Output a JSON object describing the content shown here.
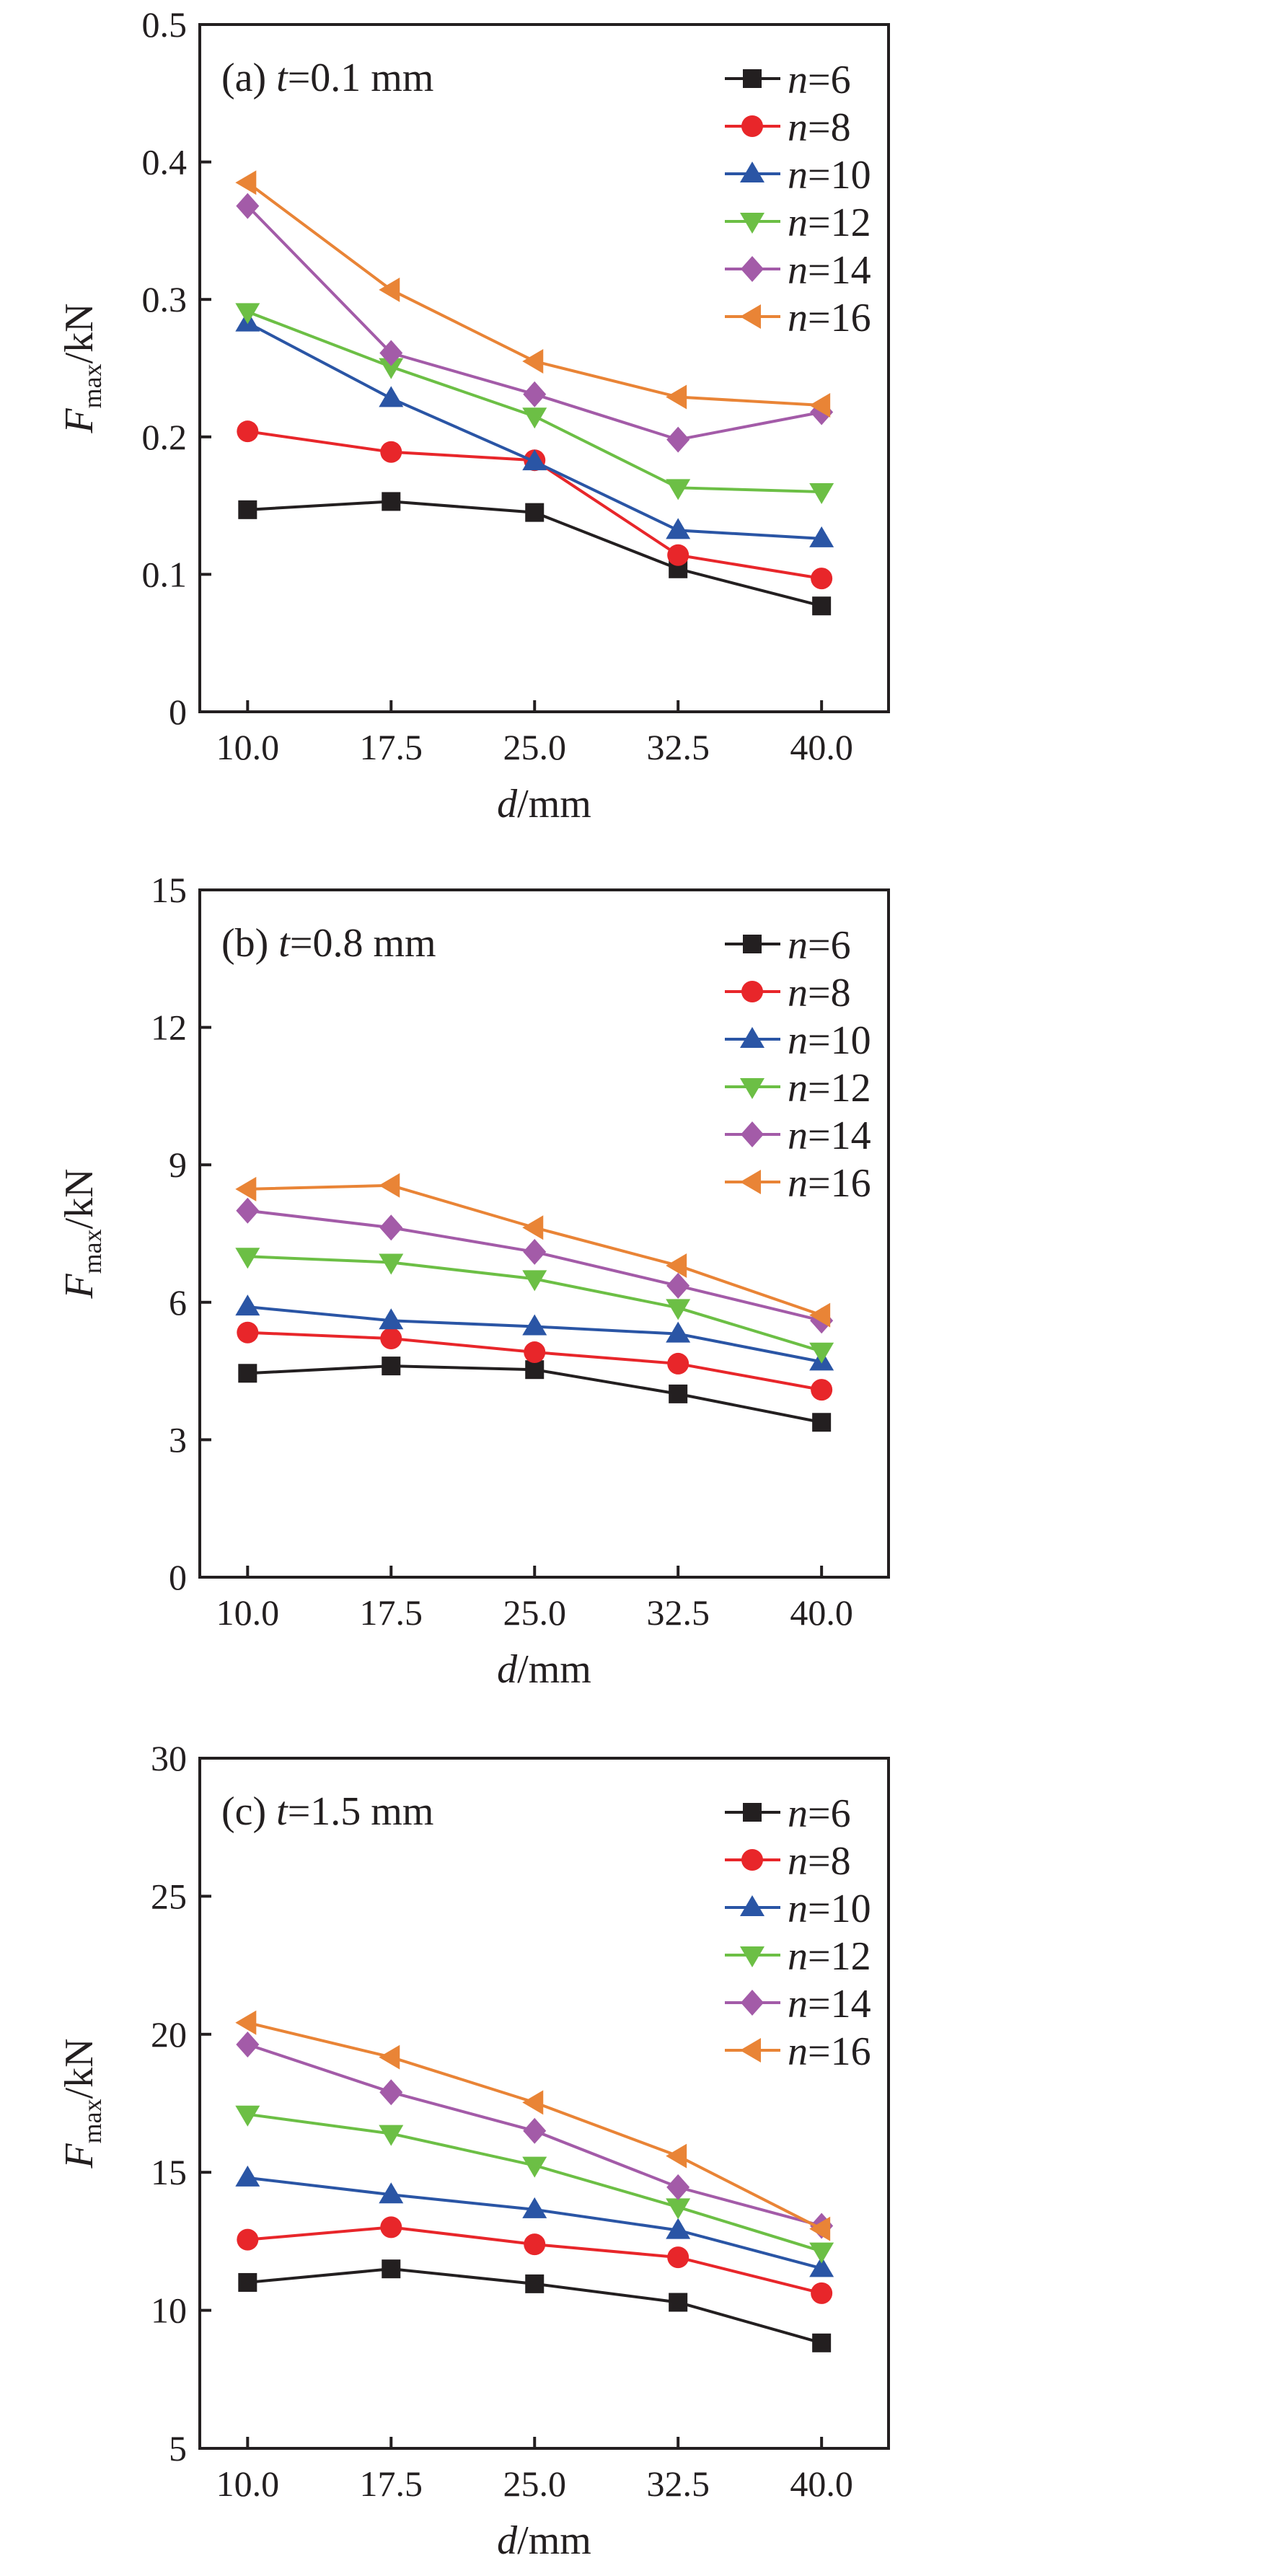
{
  "chart_data": [
    {
      "type": "line",
      "panel_label": "(a) ",
      "panel_t": "t",
      "panel_rest": "=0.1 mm",
      "xlabel_italic": "d",
      "xlabel_rest": "/mm",
      "ylabel_main": "F",
      "ylabel_sub": "max",
      "ylabel_rest": "/kN",
      "x": [
        10.0,
        17.5,
        25.0,
        32.5,
        40.0
      ],
      "xticks": [
        "10.0",
        "17.5",
        "25.0",
        "32.5",
        "40.0"
      ],
      "ylim": [
        0,
        0.5
      ],
      "yticks": [
        "0",
        "0.1",
        "0.2",
        "0.3",
        "0.4",
        "0.5"
      ],
      "legend_position": "top-right",
      "series": [
        {
          "name": "n=6",
          "values": [
            0.147,
            0.153,
            0.145,
            0.104,
            0.077
          ]
        },
        {
          "name": "n=8",
          "values": [
            0.204,
            0.189,
            0.183,
            0.114,
            0.097
          ]
        },
        {
          "name": "n=10",
          "values": [
            0.283,
            0.228,
            0.182,
            0.132,
            0.126
          ]
        },
        {
          "name": "n=12",
          "values": [
            0.291,
            0.251,
            0.215,
            0.163,
            0.16
          ]
        },
        {
          "name": "n=14",
          "values": [
            0.368,
            0.261,
            0.231,
            0.198,
            0.218
          ]
        },
        {
          "name": "n=16",
          "values": [
            0.385,
            0.307,
            0.255,
            0.229,
            0.223
          ]
        }
      ]
    },
    {
      "type": "line",
      "panel_label": "(b) ",
      "panel_t": "t",
      "panel_rest": "=0.8 mm",
      "xlabel_italic": "d",
      "xlabel_rest": "/mm",
      "ylabel_main": "F",
      "ylabel_sub": "max",
      "ylabel_rest": "/kN",
      "x": [
        10.0,
        17.5,
        25.0,
        32.5,
        40.0
      ],
      "xticks": [
        "10.0",
        "17.5",
        "25.0",
        "32.5",
        "40.0"
      ],
      "ylim": [
        0,
        15
      ],
      "yticks": [
        "0",
        "3",
        "6",
        "9",
        "12",
        "15"
      ],
      "legend_position": "top-right",
      "series": [
        {
          "name": "n=6",
          "values": [
            4.45,
            4.61,
            4.53,
            4.0,
            3.38
          ]
        },
        {
          "name": "n=8",
          "values": [
            5.34,
            5.21,
            4.91,
            4.66,
            4.09
          ]
        },
        {
          "name": "n=10",
          "values": [
            5.9,
            5.6,
            5.47,
            5.31,
            4.7
          ]
        },
        {
          "name": "n=12",
          "values": [
            7.0,
            6.87,
            6.51,
            5.88,
            4.93
          ]
        },
        {
          "name": "n=14",
          "values": [
            8.0,
            7.63,
            7.1,
            6.36,
            5.6
          ]
        },
        {
          "name": "n=16",
          "values": [
            8.47,
            8.55,
            7.63,
            6.8,
            5.72
          ]
        }
      ]
    },
    {
      "type": "line",
      "panel_label": "(c) ",
      "panel_t": "t",
      "panel_rest": "=1.5 mm",
      "xlabel_italic": "d",
      "xlabel_rest": "/mm",
      "ylabel_main": "F",
      "ylabel_sub": "max",
      "ylabel_rest": "/kN",
      "x": [
        10.0,
        17.5,
        25.0,
        32.5,
        40.0
      ],
      "xticks": [
        "10.0",
        "17.5",
        "25.0",
        "32.5",
        "40.0"
      ],
      "ylim": [
        5,
        30
      ],
      "yticks": [
        "5",
        "10",
        "15",
        "20",
        "25",
        "30"
      ],
      "legend_position": "top-right",
      "series": [
        {
          "name": "n=6",
          "values": [
            11.01,
            11.5,
            10.96,
            10.29,
            8.82
          ]
        },
        {
          "name": "n=8",
          "values": [
            12.56,
            13.01,
            12.39,
            11.92,
            10.62
          ]
        },
        {
          "name": "n=10",
          "values": [
            14.8,
            14.19,
            13.65,
            12.9,
            11.52
          ]
        },
        {
          "name": "n=12",
          "values": [
            17.1,
            16.4,
            15.25,
            13.74,
            12.14
          ]
        },
        {
          "name": "n=14",
          "values": [
            19.63,
            17.9,
            16.5,
            14.46,
            13.06
          ]
        },
        {
          "name": "n=16",
          "values": [
            20.42,
            19.17,
            17.53,
            15.59,
            12.95
          ]
        }
      ]
    }
  ],
  "styles": {
    "colors": [
      "#231f20",
      "#e8262a",
      "#2a55a5",
      "#6cbf45",
      "#a35ba8",
      "#e98436"
    ],
    "markers": [
      "square",
      "circle",
      "triangle-up",
      "triangle-down",
      "diamond",
      "triangle-left"
    ]
  }
}
